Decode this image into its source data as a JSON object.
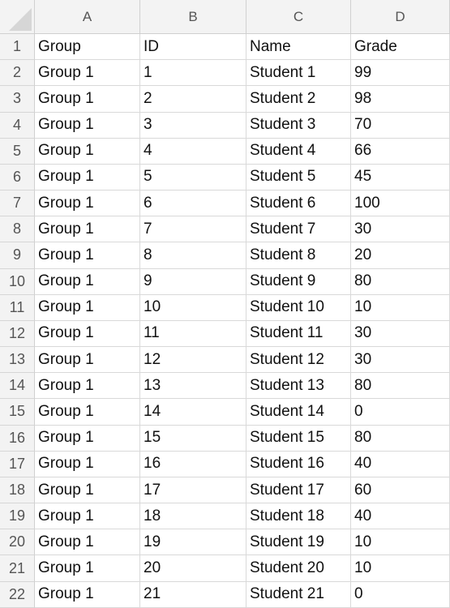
{
  "columns": [
    "A",
    "B",
    "C",
    "D"
  ],
  "rows": [
    {
      "num": "1",
      "cells": [
        "Group",
        "ID",
        "Name",
        "Grade"
      ]
    },
    {
      "num": "2",
      "cells": [
        "Group 1",
        "1",
        "Student 1",
        "99"
      ]
    },
    {
      "num": "3",
      "cells": [
        "Group 1",
        "2",
        "Student 2",
        "98"
      ]
    },
    {
      "num": "4",
      "cells": [
        "Group 1",
        "3",
        "Student 3",
        "70"
      ]
    },
    {
      "num": "5",
      "cells": [
        "Group 1",
        "4",
        "Student 4",
        "66"
      ]
    },
    {
      "num": "6",
      "cells": [
        "Group 1",
        "5",
        "Student 5",
        "45"
      ]
    },
    {
      "num": "7",
      "cells": [
        "Group 1",
        "6",
        "Student 6",
        "100"
      ]
    },
    {
      "num": "8",
      "cells": [
        "Group 1",
        "7",
        "Student 7",
        "30"
      ]
    },
    {
      "num": "9",
      "cells": [
        "Group 1",
        "8",
        "Student 8",
        "20"
      ]
    },
    {
      "num": "10",
      "cells": [
        "Group 1",
        "9",
        "Student 9",
        "80"
      ]
    },
    {
      "num": "11",
      "cells": [
        "Group 1",
        "10",
        "Student 10",
        "10"
      ]
    },
    {
      "num": "12",
      "cells": [
        "Group 1",
        "11",
        "Student 11",
        "30"
      ]
    },
    {
      "num": "13",
      "cells": [
        "Group 1",
        "12",
        "Student 12",
        "30"
      ]
    },
    {
      "num": "14",
      "cells": [
        "Group 1",
        "13",
        "Student 13",
        "80"
      ]
    },
    {
      "num": "15",
      "cells": [
        "Group 1",
        "14",
        "Student 14",
        "0"
      ]
    },
    {
      "num": "16",
      "cells": [
        "Group 1",
        "15",
        "Student 15",
        "80"
      ]
    },
    {
      "num": "17",
      "cells": [
        "Group 1",
        "16",
        "Student 16",
        "40"
      ]
    },
    {
      "num": "18",
      "cells": [
        "Group 1",
        "17",
        "Student 17",
        "60"
      ]
    },
    {
      "num": "19",
      "cells": [
        "Group 1",
        "18",
        "Student 18",
        "40"
      ]
    },
    {
      "num": "20",
      "cells": [
        "Group 1",
        "19",
        "Student 19",
        "10"
      ]
    },
    {
      "num": "21",
      "cells": [
        "Group 1",
        "20",
        "Student 20",
        "10"
      ]
    },
    {
      "num": "22",
      "cells": [
        "Group 1",
        "21",
        "Student 21",
        "0"
      ]
    }
  ]
}
